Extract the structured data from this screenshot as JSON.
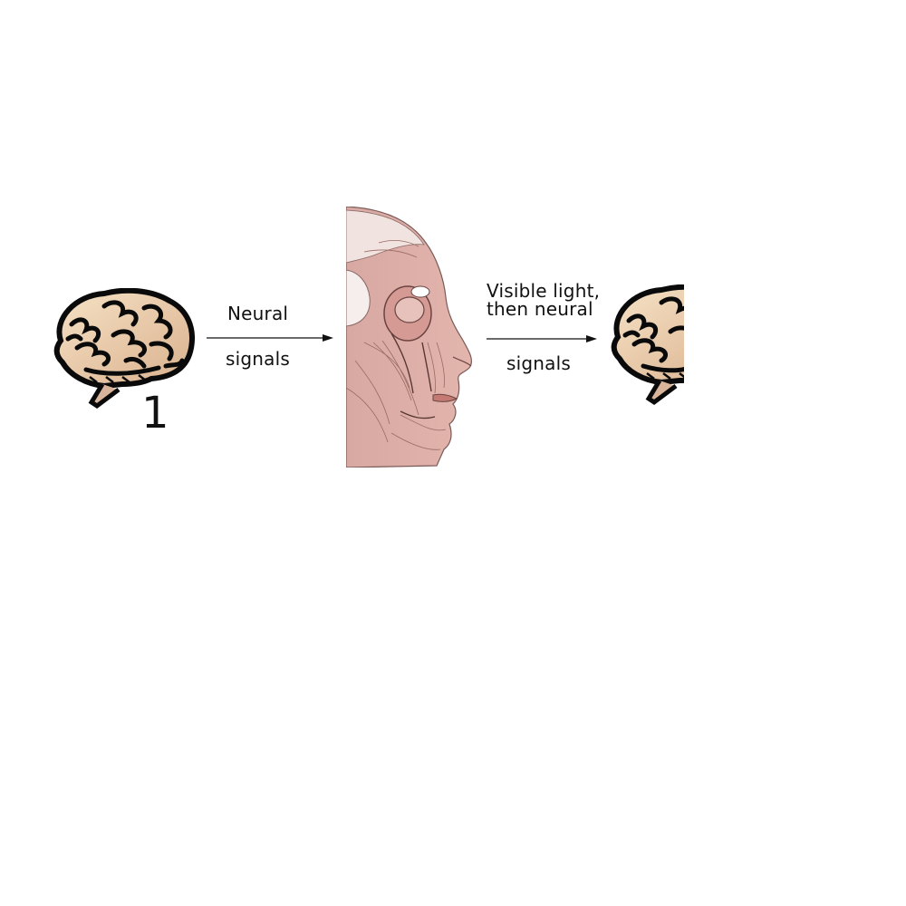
{
  "diagram": {
    "brain_left": {
      "number": "1"
    },
    "arrow_left": {
      "line1": "Neural",
      "line2": "signals"
    },
    "arrow_right": {
      "line1": "Visible light,",
      "line2": "then neural",
      "line3": "signals"
    },
    "colors": {
      "brain_outline": "#0a0a0a",
      "brain_fill": "#f3dcc0",
      "muscle": "#d9a19c",
      "arrow": "#111111"
    }
  }
}
